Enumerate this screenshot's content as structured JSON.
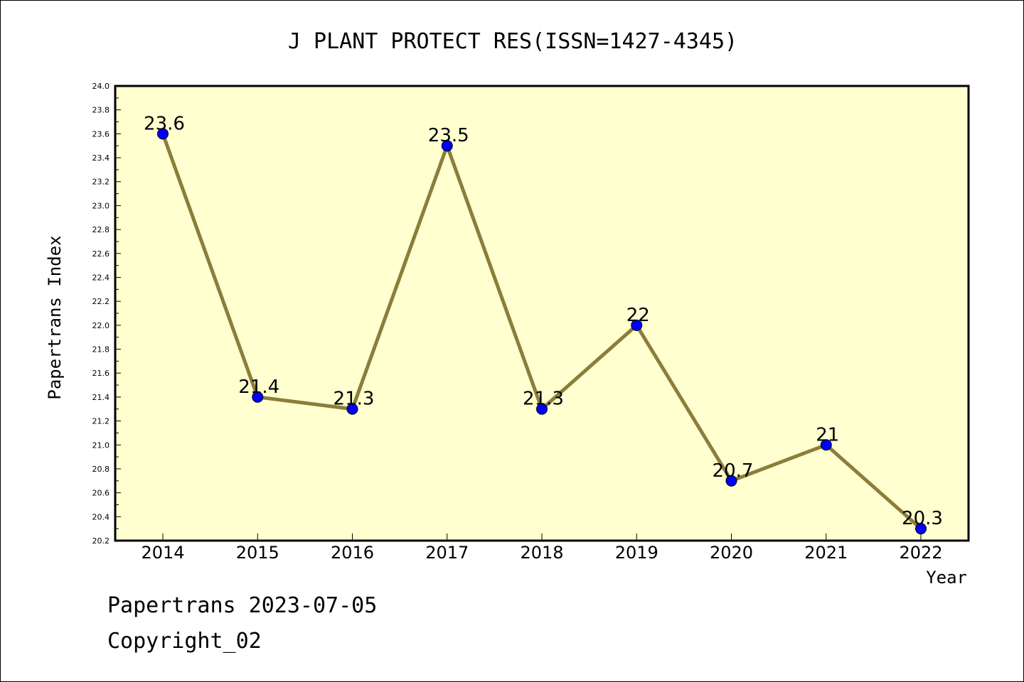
{
  "chart_data": {
    "type": "line",
    "title": "J PLANT PROTECT RES(ISSN=1427-4345)",
    "xlabel": "Year",
    "ylabel": "Papertrans Index",
    "x": [
      "2014",
      "2015",
      "2016",
      "2017",
      "2018",
      "2019",
      "2020",
      "2021",
      "2022"
    ],
    "values": [
      23.6,
      21.4,
      21.3,
      23.5,
      21.3,
      22.0,
      20.7,
      21.0,
      20.3
    ],
    "data_labels": [
      "23.6",
      "21.4",
      "21.3",
      "23.5",
      "21.3",
      "22",
      "20.7",
      "21",
      "20.3"
    ],
    "ylim": [
      20.2,
      24.0
    ],
    "y_ticks": [
      "20.2",
      "20.4",
      "20.6",
      "20.8",
      "21.0",
      "21.2",
      "21.4",
      "21.6",
      "21.8",
      "22.0",
      "22.2",
      "22.4",
      "22.6",
      "22.8",
      "23.0",
      "23.2",
      "23.4",
      "23.6",
      "23.8",
      "24.0"
    ],
    "grid": false,
    "colors": {
      "line": "#8b7d3a",
      "marker": "#0000ff",
      "plot_background": "#ffffd0"
    }
  },
  "footer": {
    "date_text": "Papertrans 2023-07-05",
    "copyright_text": "Copyright_02"
  }
}
